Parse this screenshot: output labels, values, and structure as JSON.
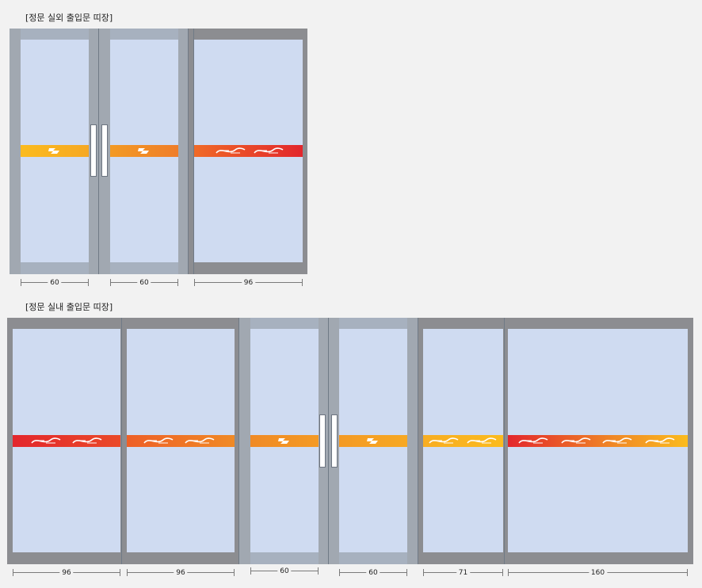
{
  "captions": {
    "outdoor": "[정문 실외 출입문 띠장]",
    "indoor": "[정문 실내 출입문 띠장]"
  },
  "outdoor_dims": [
    "60",
    "60",
    "96"
  ],
  "indoor_dims": [
    "96",
    "96",
    "60",
    "60",
    "71",
    "160"
  ],
  "colors": {
    "frame": "#a1a8b1",
    "dark_frame": "#8c8d91",
    "glass": "#cfdbf1",
    "band_yellow": "#fbbb1e",
    "band_orange": "#f08a26",
    "band_red": "#e3262c"
  }
}
